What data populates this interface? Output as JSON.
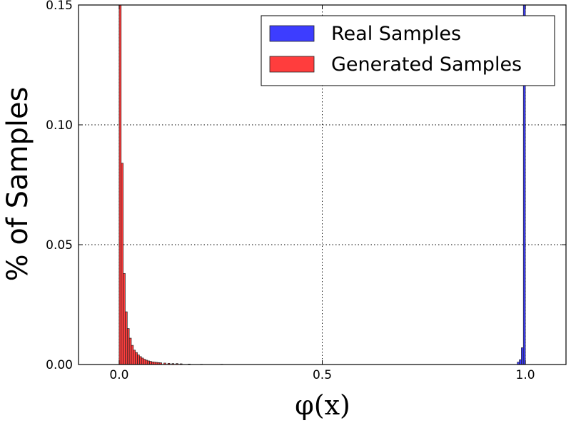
{
  "chart_data": {
    "type": "histogram",
    "xlabel": "φ(x)",
    "ylabel": "% of Samples",
    "xlim": [
      -0.1,
      1.1
    ],
    "ylim": [
      0,
      0.15
    ],
    "xticks": [
      "0.0",
      "0.5",
      "1.0"
    ],
    "yticks": [
      "0.00",
      "0.05",
      "0.10",
      "0.15"
    ],
    "grid": true,
    "legend_position": "top-right",
    "bin_width": 0.005,
    "series": [
      {
        "name": "Real Samples",
        "color": "#3333ff",
        "bin_starts": [
          0.98,
          0.985,
          0.99,
          0.995
        ],
        "values": [
          0.001,
          0.002,
          0.007,
          0.15
        ]
      },
      {
        "name": "Generated Samples",
        "color": "#ff3333",
        "bin_starts": [
          0.0,
          0.005,
          0.01,
          0.015,
          0.02,
          0.025,
          0.03,
          0.035,
          0.04,
          0.045,
          0.05,
          0.055,
          0.06,
          0.065,
          0.07,
          0.075,
          0.08,
          0.085,
          0.09,
          0.095,
          0.1,
          0.11,
          0.12,
          0.13,
          0.14,
          0.15,
          0.17,
          0.2,
          0.25
        ],
        "values": [
          0.15,
          0.084,
          0.038,
          0.022,
          0.015,
          0.011,
          0.008,
          0.006,
          0.005,
          0.004,
          0.0033,
          0.0027,
          0.0022,
          0.0018,
          0.0015,
          0.0013,
          0.0011,
          0.001,
          0.0009,
          0.0008,
          0.0007,
          0.0006,
          0.0005,
          0.0004,
          0.0004,
          0.0003,
          0.0002,
          0.0001,
          0.0001
        ]
      }
    ]
  }
}
